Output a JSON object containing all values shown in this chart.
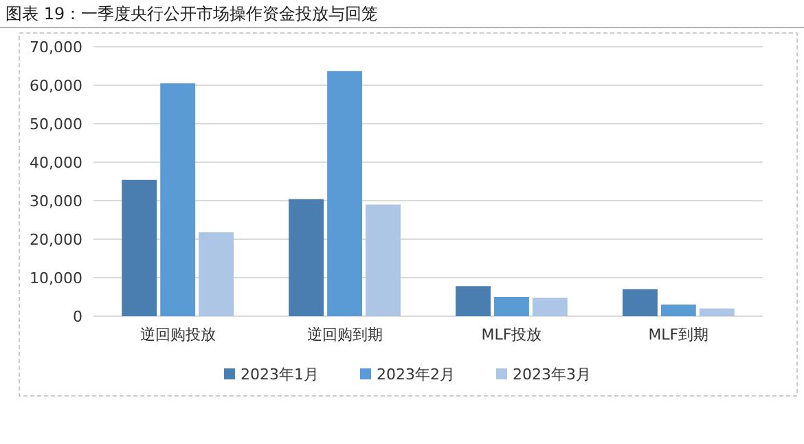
{
  "chart_data": {
    "type": "bar",
    "title": "图表 19：一季度央行公开市场操作资金投放与回笼",
    "categories": [
      "逆回购投放",
      "逆回购到期",
      "MLF投放",
      "MLF到期"
    ],
    "series": [
      {
        "name": "2023年1月",
        "color": "#4a7eb0",
        "values": [
          35400,
          30400,
          7800,
          7000
        ]
      },
      {
        "name": "2023年2月",
        "color": "#5b9bd5",
        "values": [
          60500,
          63700,
          5000,
          3000
        ]
      },
      {
        "name": "2023年3月",
        "color": "#adc6e6",
        "values": [
          21800,
          29000,
          4800,
          2000
        ]
      }
    ],
    "ylim": [
      0,
      70000
    ],
    "yticks": [
      {
        "value": 0,
        "label": "0"
      },
      {
        "value": 10000,
        "label": "10,000"
      },
      {
        "value": 20000,
        "label": "20,000"
      },
      {
        "value": 30000,
        "label": "30,000"
      },
      {
        "value": 40000,
        "label": "40,000"
      },
      {
        "value": 50000,
        "label": "50,000"
      },
      {
        "value": 60000,
        "label": "60,000"
      },
      {
        "value": 70000,
        "label": "70,000"
      }
    ],
    "grid": "y",
    "legend": "bottom"
  }
}
